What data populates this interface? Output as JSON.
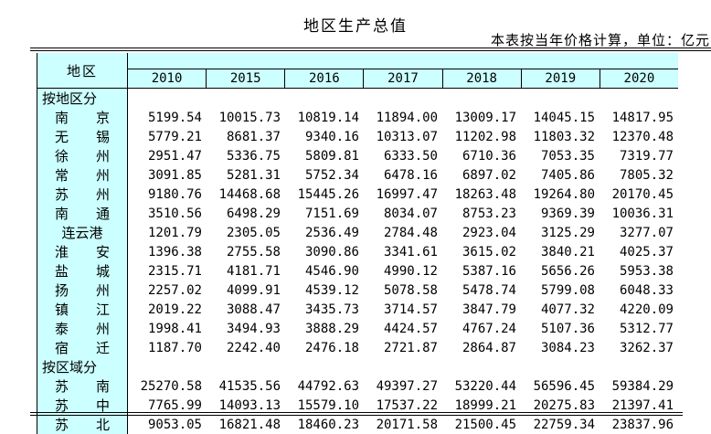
{
  "title": "地区生产总值",
  "note": "本表按当年价格计算，单位：亿元",
  "table": {
    "region_header": "地区",
    "years": [
      "2010",
      "2015",
      "2016",
      "2017",
      "2018",
      "2019",
      "2020"
    ],
    "rows": [
      {
        "label": "按地区分",
        "section": true,
        "values": [
          "",
          "",
          "",
          "",
          "",
          "",
          ""
        ]
      },
      {
        "label": "南　　京",
        "section": false,
        "values": [
          "5199.54",
          "10015.73",
          "10819.14",
          "11894.00",
          "13009.17",
          "14045.15",
          "14817.95"
        ]
      },
      {
        "label": "无　　锡",
        "section": false,
        "values": [
          "5779.21",
          "8681.37",
          "9340.16",
          "10313.07",
          "11202.98",
          "11803.32",
          "12370.48"
        ]
      },
      {
        "label": "徐　　州",
        "section": false,
        "values": [
          "2951.47",
          "5336.75",
          "5809.81",
          "6333.50",
          "6710.36",
          "7053.35",
          "7319.77"
        ]
      },
      {
        "label": "常　　州",
        "section": false,
        "values": [
          "3091.85",
          "5281.31",
          "5752.34",
          "6478.16",
          "6897.02",
          "7405.86",
          "7805.32"
        ]
      },
      {
        "label": "苏　　州",
        "section": false,
        "values": [
          "9180.76",
          "14468.68",
          "15445.26",
          "16997.47",
          "18263.48",
          "19264.80",
          "20170.45"
        ]
      },
      {
        "label": "南　　通",
        "section": false,
        "values": [
          "3510.56",
          "6498.29",
          "7151.69",
          "8034.07",
          "8753.23",
          "9369.39",
          "10036.31"
        ]
      },
      {
        "label": "连云港",
        "section": false,
        "values": [
          "1201.79",
          "2305.05",
          "2536.49",
          "2784.48",
          "2923.04",
          "3125.29",
          "3277.07"
        ]
      },
      {
        "label": "淮　　安",
        "section": false,
        "values": [
          "1396.38",
          "2755.58",
          "3090.86",
          "3341.61",
          "3615.02",
          "3840.21",
          "4025.37"
        ]
      },
      {
        "label": "盐　　城",
        "section": false,
        "values": [
          "2315.71",
          "4181.71",
          "4546.90",
          "4990.12",
          "5387.16",
          "5656.26",
          "5953.38"
        ]
      },
      {
        "label": "扬　　州",
        "section": false,
        "values": [
          "2257.02",
          "4099.91",
          "4539.12",
          "5078.58",
          "5478.74",
          "5799.08",
          "6048.33"
        ]
      },
      {
        "label": "镇　　江",
        "section": false,
        "values": [
          "2019.22",
          "3088.47",
          "3435.73",
          "3714.57",
          "3847.79",
          "4077.32",
          "4220.09"
        ]
      },
      {
        "label": "泰　　州",
        "section": false,
        "values": [
          "1998.41",
          "3494.93",
          "3888.29",
          "4424.57",
          "4767.24",
          "5107.36",
          "5312.77"
        ]
      },
      {
        "label": "宿　　迁",
        "section": false,
        "values": [
          "1187.70",
          "2242.40",
          "2476.18",
          "2721.87",
          "2864.87",
          "3084.23",
          "3262.37"
        ]
      },
      {
        "label": "按区域分",
        "section": true,
        "values": [
          "",
          "",
          "",
          "",
          "",
          "",
          ""
        ]
      },
      {
        "label": "苏　　南",
        "section": false,
        "values": [
          "25270.58",
          "41535.56",
          "44792.63",
          "49397.27",
          "53220.44",
          "56596.45",
          "59384.29"
        ]
      },
      {
        "label": "苏　　中",
        "section": false,
        "values": [
          "7765.99",
          "14093.13",
          "15579.10",
          "17537.22",
          "18999.21",
          "20275.83",
          "21397.41"
        ]
      },
      {
        "label": "苏　　北",
        "section": false,
        "values": [
          "9053.05",
          "16821.48",
          "18460.23",
          "20171.58",
          "21500.45",
          "22759.34",
          "23837.96"
        ]
      }
    ]
  }
}
